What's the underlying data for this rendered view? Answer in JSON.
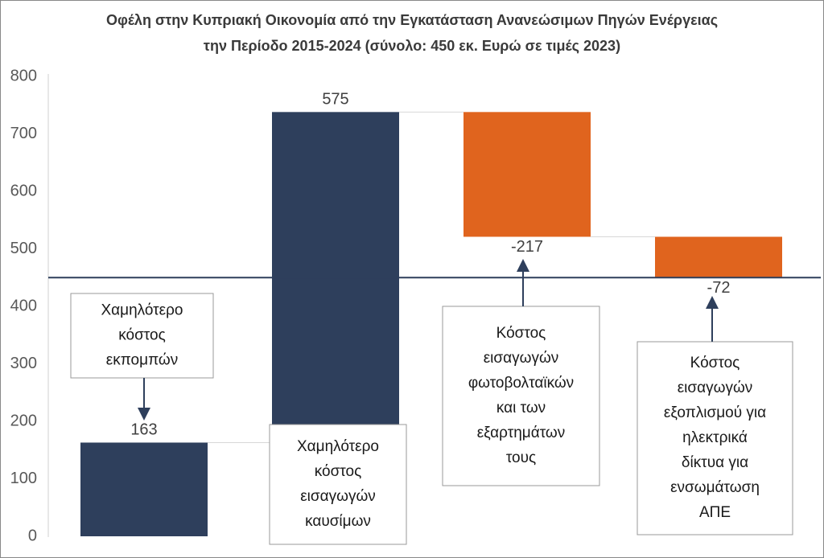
{
  "chart_data": {
    "type": "waterfall",
    "title_lines": [
      "Οφέλη στην Κυπριακή Οικονομία από την Εγκατάσταση Ανανεώσιμων Πηγών Ενέργειας",
      "την Περίοδο 2015-2024 (σύνολο: 450 εκ. Ευρώ σε τιμές 2023)"
    ],
    "values": [
      163,
      575,
      -217,
      -72
    ],
    "colors": [
      "#2e3f5c",
      "#2e3f5c",
      "#e0641e",
      "#e0641e"
    ],
    "total": 450,
    "total_color": "#2e3f5c",
    "ylim": [
      0,
      800
    ],
    "yticks": [
      0,
      100,
      200,
      300,
      400,
      500,
      600,
      700,
      800
    ],
    "annotations": [
      [
        "Χαμηλότερο",
        "κόστος",
        "εκπομπών"
      ],
      [
        "Χαμηλότερο",
        "κόστος",
        "εισαγωγών",
        "καυσίμων"
      ],
      [
        "Κόστος",
        "εισαγωγών",
        "φωτοβολταϊκών",
        "και των",
        "εξαρτημάτων",
        "τους"
      ],
      [
        "Κόστος",
        "εισαγωγών",
        "εξοπλισμού για",
        "ηλεκτρικά",
        "δίκτυα για",
        "ενσωμάτωση",
        "ΑΠΕ"
      ]
    ]
  }
}
